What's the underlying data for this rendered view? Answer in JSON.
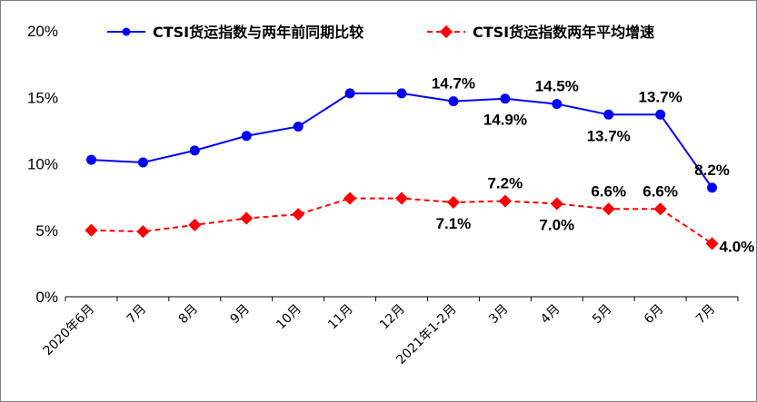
{
  "chart_data": {
    "type": "line",
    "categories": [
      "2020年6月",
      "7月",
      "8月",
      "9月",
      "10月",
      "11月",
      "12月",
      "2021年1-2月",
      "3月",
      "4月",
      "5月",
      "6月",
      "7月"
    ],
    "yticks": [
      "0%",
      "5%",
      "10%",
      "15%",
      "20%"
    ],
    "ylim": [
      0,
      20
    ],
    "grid": false,
    "legend_position": "top",
    "series": [
      {
        "name": "CTSI货运指数与两年前同期比较",
        "color": "#0000ff",
        "marker": "circle",
        "line": "solid",
        "values": [
          10.3,
          10.1,
          11.0,
          12.1,
          12.8,
          15.3,
          15.3,
          14.7,
          14.9,
          14.5,
          13.7,
          13.7,
          8.2
        ],
        "data_labels": [
          {
            "index": 7,
            "text": "14.7%",
            "pos": "above"
          },
          {
            "index": 8,
            "text": "14.9%",
            "pos": "below"
          },
          {
            "index": 9,
            "text": "14.5%",
            "pos": "above"
          },
          {
            "index": 10,
            "text": "13.7%",
            "pos": "below"
          },
          {
            "index": 11,
            "text": "13.7%",
            "pos": "above"
          },
          {
            "index": 12,
            "text": "8.2%",
            "pos": "above"
          }
        ]
      },
      {
        "name": "CTSI货运指数两年平均增速",
        "color": "#ff0000",
        "marker": "diamond",
        "line": "dashed",
        "values": [
          5.0,
          4.9,
          5.4,
          5.9,
          6.2,
          7.4,
          7.4,
          7.1,
          7.2,
          7.0,
          6.6,
          6.6,
          4.0
        ],
        "data_labels": [
          {
            "index": 7,
            "text": "7.1%",
            "pos": "below"
          },
          {
            "index": 8,
            "text": "7.2%",
            "pos": "above"
          },
          {
            "index": 9,
            "text": "7.0%",
            "pos": "below"
          },
          {
            "index": 10,
            "text": "6.6%",
            "pos": "above"
          },
          {
            "index": 11,
            "text": "6.6%",
            "pos": "above"
          },
          {
            "index": 12,
            "text": "4.0%",
            "pos": "right"
          }
        ]
      }
    ]
  }
}
